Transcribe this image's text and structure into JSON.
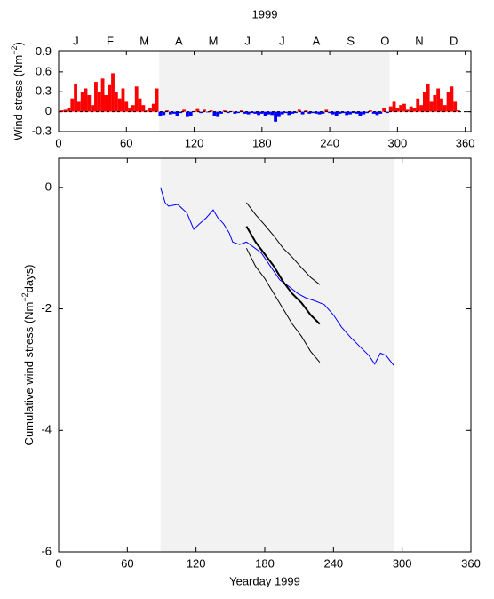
{
  "chart_data": [
    {
      "type": "bar",
      "title": "1999",
      "months": [
        "J",
        "F",
        "M",
        "A",
        "M",
        "J",
        "J",
        "A",
        "S",
        "O",
        "N",
        "D"
      ],
      "ylabel": {
        "text": "Wind stress (Nm",
        "sup": "−2",
        "end": ")"
      },
      "color": "#ff0000",
      "negative_color": "#0000ff",
      "shade": [
        89,
        293
      ],
      "shade_color": "#f2f2f2",
      "xlim": [
        0,
        365
      ],
      "xticks": [
        0,
        60,
        120,
        180,
        240,
        300,
        360
      ],
      "ylim": [
        -0.3,
        0.92
      ],
      "yticks": [
        -0.3,
        0,
        0.3,
        0.6,
        0.9
      ],
      "x": [
        3,
        6,
        9,
        12,
        15,
        18,
        21,
        24,
        27,
        30,
        33,
        36,
        39,
        42,
        45,
        48,
        51,
        54,
        57,
        60,
        63,
        66,
        69,
        72,
        75,
        78,
        81,
        84,
        87,
        90,
        93,
        96,
        99,
        102,
        105,
        108,
        111,
        114,
        117,
        120,
        123,
        126,
        129,
        132,
        135,
        138,
        141,
        144,
        147,
        150,
        153,
        156,
        159,
        162,
        165,
        168,
        171,
        174,
        177,
        180,
        183,
        186,
        189,
        192,
        195,
        198,
        201,
        204,
        207,
        210,
        213,
        216,
        219,
        222,
        225,
        228,
        231,
        234,
        237,
        240,
        243,
        246,
        249,
        252,
        255,
        258,
        261,
        264,
        267,
        270,
        273,
        276,
        279,
        282,
        285,
        288,
        291,
        294,
        297,
        300,
        303,
        306,
        309,
        312,
        315,
        318,
        321,
        324,
        327,
        330,
        333,
        336,
        339,
        342,
        345,
        348,
        351,
        354
      ],
      "values": [
        0.02,
        0.03,
        0.05,
        0.2,
        0.42,
        0.15,
        0.3,
        0.35,
        0.25,
        0.1,
        0.45,
        0.3,
        0.5,
        0.25,
        0.4,
        0.58,
        0.3,
        0.2,
        0.35,
        0.15,
        0.05,
        0.1,
        0.38,
        0.2,
        0.1,
        0.02,
        0.05,
        0.12,
        0.35,
        -0.06,
        -0.05,
        0.02,
        -0.04,
        -0.03,
        -0.06,
        -0.02,
        0.03,
        -0.08,
        -0.06,
        0.01,
        0.04,
        -0.02,
        0.03,
        -0.01,
        0.02,
        -0.06,
        -0.08,
        -0.03,
        0.02,
        -0.02,
        0.01,
        -0.03,
        -0.02,
        0.02,
        -0.03,
        -0.04,
        -0.02,
        -0.03,
        -0.05,
        -0.03,
        -0.06,
        -0.04,
        -0.05,
        -0.15,
        -0.08,
        -0.04,
        -0.02,
        -0.05,
        -0.03,
        -0.02,
        0.03,
        -0.04,
        0.02,
        -0.03,
        -0.02,
        -0.03,
        -0.04,
        -0.03,
        0.03,
        -0.02,
        -0.04,
        -0.06,
        -0.03,
        -0.02,
        -0.05,
        -0.04,
        -0.02,
        -0.03,
        -0.07,
        -0.04,
        -0.02,
        0.02,
        -0.03,
        -0.05,
        -0.03,
        0.05,
        -0.02,
        0.08,
        0.15,
        0.05,
        0.1,
        0.12,
        0.03,
        0.08,
        0.05,
        0.2,
        0.1,
        0.3,
        0.42,
        0.15,
        0.25,
        0.35,
        0.2,
        0.1,
        0.3,
        0.38,
        0.15,
        0.02
      ]
    },
    {
      "type": "line",
      "xlabel": "Yearday 1999",
      "ylabel": {
        "text": "Cumulative wind stress (Nm",
        "sup": "−2",
        "end": "days)"
      },
      "shade": [
        89,
        293
      ],
      "shade_color": "#f2f2f2",
      "xlim": [
        0,
        360
      ],
      "xticks": [
        0,
        60,
        120,
        180,
        240,
        300,
        360
      ],
      "ylim": [
        -6,
        0.48
      ],
      "yticks": [
        -6,
        -4,
        -2,
        0
      ],
      "series": [
        {
          "color": "#0000ff",
          "width": 1,
          "x": [
            89,
            93,
            96,
            104,
            112,
            118,
            123,
            129,
            135,
            139,
            144,
            149,
            152,
            158,
            164,
            170,
            177,
            185,
            193,
            201,
            209,
            216,
            224,
            232,
            240,
            247,
            255,
            263,
            271,
            276,
            281,
            286,
            293
          ],
          "values": [
            0,
            -0.25,
            -0.31,
            -0.28,
            -0.42,
            -0.69,
            -0.6,
            -0.5,
            -0.37,
            -0.5,
            -0.6,
            -0.75,
            -0.9,
            -0.94,
            -0.9,
            -0.98,
            -1.08,
            -1.3,
            -1.52,
            -1.63,
            -1.75,
            -1.82,
            -1.87,
            -1.93,
            -2.1,
            -2.3,
            -2.47,
            -2.62,
            -2.77,
            -2.91,
            -2.73,
            -2.77,
            -2.94
          ]
        },
        {
          "color": "#000000",
          "width": 2,
          "x": [
            164,
            172,
            180,
            188,
            196,
            204,
            212,
            220,
            228
          ],
          "values": [
            -0.64,
            -0.9,
            -1.1,
            -1.3,
            -1.55,
            -1.75,
            -1.9,
            -2.1,
            -2.25
          ]
        },
        {
          "color": "#000000",
          "width": 1,
          "x": [
            164,
            172,
            180,
            188,
            196,
            204,
            212,
            220,
            228
          ],
          "values": [
            -0.25,
            -0.45,
            -0.62,
            -0.8,
            -1.0,
            -1.15,
            -1.32,
            -1.48,
            -1.6
          ]
        },
        {
          "color": "#000000",
          "width": 1,
          "x": [
            164,
            172,
            180,
            188,
            196,
            204,
            212,
            220,
            228
          ],
          "values": [
            -1.0,
            -1.3,
            -1.5,
            -1.75,
            -2.0,
            -2.25,
            -2.45,
            -2.7,
            -2.88
          ]
        }
      ]
    }
  ]
}
